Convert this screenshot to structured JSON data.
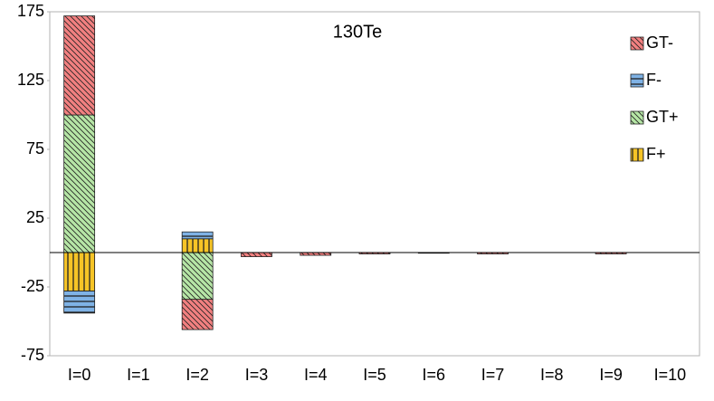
{
  "chart_data": {
    "type": "stacked-bar",
    "title": "130Te",
    "categories": [
      "I=0",
      "I=1",
      "I=2",
      "I=3",
      "I=4",
      "I=5",
      "I=6",
      "I=7",
      "I=8",
      "I=9",
      "I=10"
    ],
    "series": [
      {
        "name": "GT-",
        "color": "#f28080",
        "pattern": "diagonal",
        "values": [
          72,
          0,
          -22,
          -3,
          -2,
          -1,
          -0.5,
          -1,
          0,
          -1,
          0
        ]
      },
      {
        "name": "F-",
        "color": "#7fb2e5",
        "pattern": "horizontal",
        "values": [
          -16,
          0,
          5,
          0,
          0,
          0,
          0,
          0,
          0,
          0,
          0
        ]
      },
      {
        "name": "GT+",
        "color": "#b6e6a6",
        "pattern": "diagonal",
        "values": [
          100,
          0,
          -34,
          0,
          0,
          0,
          0,
          0,
          0,
          0,
          0
        ]
      },
      {
        "name": "F+",
        "color": "#f6c426",
        "pattern": "vertical",
        "values": [
          -28,
          0,
          10,
          0,
          0,
          0,
          0,
          0,
          0,
          0,
          0
        ]
      }
    ],
    "ylim": [
      -75,
      175
    ],
    "yticks": [
      -75,
      -25,
      25,
      75,
      125,
      175
    ],
    "legend": "top-right"
  }
}
